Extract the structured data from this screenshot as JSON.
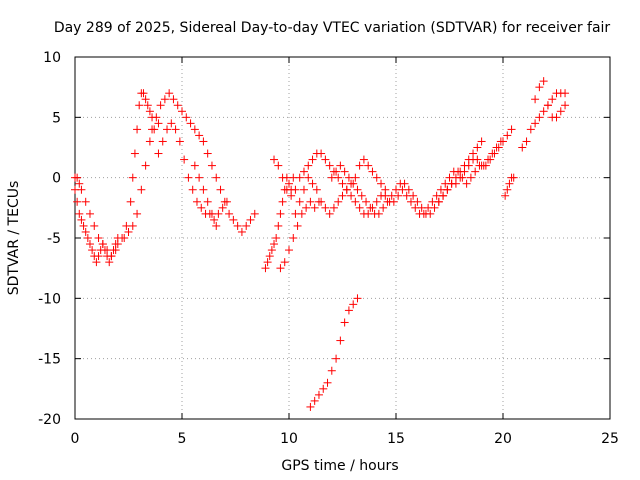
{
  "chart_data": {
    "type": "scatter",
    "title": "Day 289 of 2025, Sidereal Day-to-day VTEC variation (SDTVAR) for receiver fair",
    "xlabel": "GPS time / hours",
    "ylabel": "SDTVAR / TECUs",
    "xlim": [
      0,
      25
    ],
    "ylim": [
      -20,
      10
    ],
    "xticks": [
      "0",
      "5",
      "10",
      "15",
      "20",
      "25"
    ],
    "yticks": [
      "10",
      "5",
      "0",
      "-5",
      "-10",
      "-15",
      "-20"
    ],
    "grid": true,
    "marker": "+",
    "color": "#ff0000",
    "series": [
      {
        "name": "SDTVAR",
        "x": [
          0.0,
          0.1,
          0.2,
          0.3,
          0.4,
          0.5,
          0.6,
          0.7,
          0.8,
          0.9,
          1.0,
          1.1,
          1.2,
          1.3,
          1.4,
          1.5,
          1.6,
          1.7,
          1.8,
          1.9,
          2.0,
          0.0,
          0.1,
          0.2,
          0.3,
          0.5,
          0.7,
          0.9,
          1.1,
          1.3,
          1.5,
          1.7,
          1.9,
          2.0,
          2.2,
          2.4,
          2.6,
          2.7,
          2.8,
          2.9,
          3.0,
          3.1,
          3.2,
          3.3,
          3.4,
          3.5,
          3.6,
          2.3,
          2.5,
          2.7,
          2.9,
          3.1,
          3.3,
          3.5,
          3.7,
          3.9,
          3.6,
          3.8,
          4.0,
          4.2,
          4.4,
          4.6,
          4.8,
          5.0,
          5.2,
          5.4,
          5.6,
          5.8,
          6.0,
          3.9,
          4.1,
          4.3,
          4.5,
          4.7,
          4.9,
          5.1,
          5.3,
          5.5,
          5.7,
          5.9,
          6.1,
          6.3,
          6.5,
          6.7,
          6.9,
          7.1,
          6.2,
          6.4,
          6.6,
          6.8,
          7.0,
          7.2,
          7.4,
          7.6,
          7.8,
          8.0,
          8.2,
          8.4,
          5.6,
          5.8,
          6.0,
          6.2,
          6.4,
          6.6,
          8.9,
          9.0,
          9.1,
          9.2,
          9.3,
          9.4,
          9.5,
          9.6,
          9.7,
          9.8,
          9.9,
          10.0,
          10.1,
          10.2,
          9.6,
          9.8,
          10.0,
          10.2,
          10.4,
          10.6,
          10.8,
          11.0,
          11.2,
          11.4,
          9.3,
          9.5,
          9.7,
          9.9,
          10.1,
          10.3,
          10.5,
          10.7,
          10.9,
          11.1,
          11.3,
          11.5,
          11.7,
          11.9,
          12.1,
          12.3,
          12.5,
          12.7,
          12.9,
          13.1,
          13.3,
          13.5,
          13.7,
          13.9,
          14.1,
          14.3,
          14.5,
          10.3,
          10.5,
          10.7,
          10.9,
          11.1,
          11.3,
          11.5,
          11.7,
          11.9,
          12.1,
          12.3,
          12.5,
          12.7,
          12.9,
          13.1,
          13.3,
          13.5,
          13.7,
          13.9,
          14.1,
          14.3,
          14.5,
          14.7,
          14.9,
          15.1,
          15.3,
          12.0,
          12.2,
          12.4,
          12.6,
          12.8,
          13.0,
          13.2,
          13.4,
          13.6,
          13.8,
          14.0,
          14.2,
          14.4,
          14.6,
          14.8,
          15.0,
          15.2,
          15.4,
          15.6,
          15.8,
          16.0,
          16.2,
          16.4,
          16.6,
          16.8,
          17.0,
          17.2,
          17.4,
          17.6,
          17.8,
          18.0,
          18.2,
          18.4,
          18.6,
          18.8,
          19.0,
          15.5,
          15.7,
          15.9,
          16.1,
          16.3,
          16.5,
          16.7,
          16.9,
          17.1,
          17.3,
          17.5,
          17.7,
          17.9,
          18.1,
          18.3,
          18.5,
          18.7,
          18.9,
          19.1,
          19.3,
          19.5,
          19.7,
          19.9,
          17.0,
          17.2,
          17.4,
          17.6,
          17.8,
          18.0,
          18.2,
          18.4,
          18.6,
          18.8,
          19.0,
          19.2,
          19.4,
          19.6,
          19.8,
          20.0,
          20.2,
          20.4,
          11.0,
          11.2,
          11.4,
          11.6,
          11.8,
          12.0,
          12.2,
          12.4,
          12.6,
          12.8,
          13.0,
          13.2,
          20.1,
          20.2,
          20.3,
          20.4,
          20.5,
          20.9,
          21.1,
          21.3,
          21.5,
          21.7,
          21.9,
          22.1,
          22.3,
          22.5,
          22.7,
          22.9,
          21.5,
          21.7,
          21.9,
          22.1,
          22.3,
          22.5,
          22.7,
          22.9
        ],
        "y": [
          -1.0,
          -2.0,
          -3.0,
          -3.5,
          -4.0,
          -4.5,
          -5.0,
          -5.5,
          -6.0,
          -6.5,
          -7.0,
          -6.5,
          -6.0,
          -5.5,
          -6.0,
          -6.5,
          -7.0,
          -6.5,
          -6.0,
          -5.5,
          -5.0,
          0.0,
          0.0,
          -0.5,
          -1.0,
          -2.0,
          -3.0,
          -4.0,
          -5.0,
          -5.5,
          -6.0,
          -6.5,
          -6.0,
          -5.5,
          -5.0,
          -4.0,
          -2.0,
          0.0,
          2.0,
          4.0,
          6.0,
          7.0,
          7.0,
          6.5,
          6.0,
          5.5,
          5.0,
          -5.0,
          -4.5,
          -4.0,
          -3.0,
          -1.0,
          1.0,
          3.0,
          4.0,
          4.5,
          4.0,
          5.0,
          6.0,
          6.5,
          7.0,
          6.5,
          6.0,
          5.5,
          5.0,
          4.5,
          4.0,
          3.5,
          3.0,
          2.0,
          3.0,
          4.0,
          4.5,
          4.0,
          3.0,
          1.5,
          0.0,
          -1.0,
          -2.0,
          -2.5,
          -3.0,
          -3.0,
          -3.5,
          -3.0,
          -2.5,
          -2.0,
          2.0,
          1.0,
          0.0,
          -1.0,
          -2.0,
          -3.0,
          -3.5,
          -4.0,
          -4.5,
          -4.0,
          -3.5,
          -3.0,
          1.0,
          0.0,
          -1.0,
          -2.0,
          -3.0,
          -4.0,
          -7.5,
          -7.0,
          -6.5,
          -6.0,
          -5.5,
          -5.0,
          -4.0,
          -3.0,
          -2.0,
          -1.0,
          0.0,
          -0.5,
          -1.0,
          0.0,
          -7.5,
          -7.0,
          -6.0,
          -5.0,
          -4.0,
          -3.0,
          -2.5,
          -2.0,
          -2.5,
          -2.0,
          1.5,
          1.0,
          0.0,
          -1.0,
          -1.5,
          -1.0,
          0.0,
          0.5,
          1.0,
          1.5,
          2.0,
          2.0,
          1.5,
          1.0,
          0.5,
          0.0,
          -0.5,
          -1.0,
          -0.5,
          0.0,
          1.0,
          1.5,
          1.0,
          0.5,
          0.0,
          -0.5,
          -1.0,
          -3.0,
          -2.0,
          -1.0,
          0.0,
          -0.5,
          -1.0,
          -2.0,
          -2.5,
          -3.0,
          -2.5,
          -2.0,
          -1.5,
          -1.0,
          -1.5,
          -2.0,
          -2.5,
          -3.0,
          -3.0,
          -2.5,
          -2.0,
          -1.5,
          -1.5,
          -2.0,
          -2.0,
          -1.5,
          -1.0,
          0.0,
          0.5,
          1.0,
          0.5,
          0.0,
          -0.5,
          -1.0,
          -1.5,
          -2.0,
          -2.5,
          -3.0,
          -3.0,
          -2.5,
          -2.0,
          -1.5,
          -1.0,
          -0.5,
          -0.5,
          -1.0,
          -1.5,
          -2.0,
          -2.5,
          -3.0,
          -3.0,
          -2.5,
          -2.0,
          -1.5,
          -1.0,
          -0.5,
          0.0,
          0.5,
          1.0,
          1.5,
          2.0,
          2.5,
          3.0,
          -1.5,
          -2.0,
          -2.5,
          -3.0,
          -3.0,
          -2.5,
          -2.0,
          -1.5,
          -1.0,
          -0.5,
          0.0,
          0.5,
          0.5,
          0.0,
          -0.5,
          0.0,
          0.5,
          1.0,
          1.0,
          1.5,
          2.0,
          2.5,
          3.0,
          -2.0,
          -1.5,
          -1.0,
          -0.5,
          -0.5,
          0.0,
          0.5,
          1.0,
          1.5,
          1.5,
          1.0,
          1.0,
          1.5,
          2.0,
          2.5,
          3.0,
          3.5,
          4.0,
          -19.0,
          -18.5,
          -18.0,
          -17.5,
          -17.0,
          -16.0,
          -15.0,
          -13.5,
          -12.0,
          -11.0,
          -10.5,
          -10.0,
          -1.5,
          -1.0,
          -0.5,
          0.0,
          0.0,
          2.5,
          3.0,
          4.0,
          4.5,
          5.0,
          5.5,
          6.0,
          6.5,
          7.0,
          7.0,
          7.0,
          6.5,
          7.5,
          8.0,
          6.0,
          5.0,
          5.0,
          5.5,
          6.0
        ]
      }
    ]
  }
}
